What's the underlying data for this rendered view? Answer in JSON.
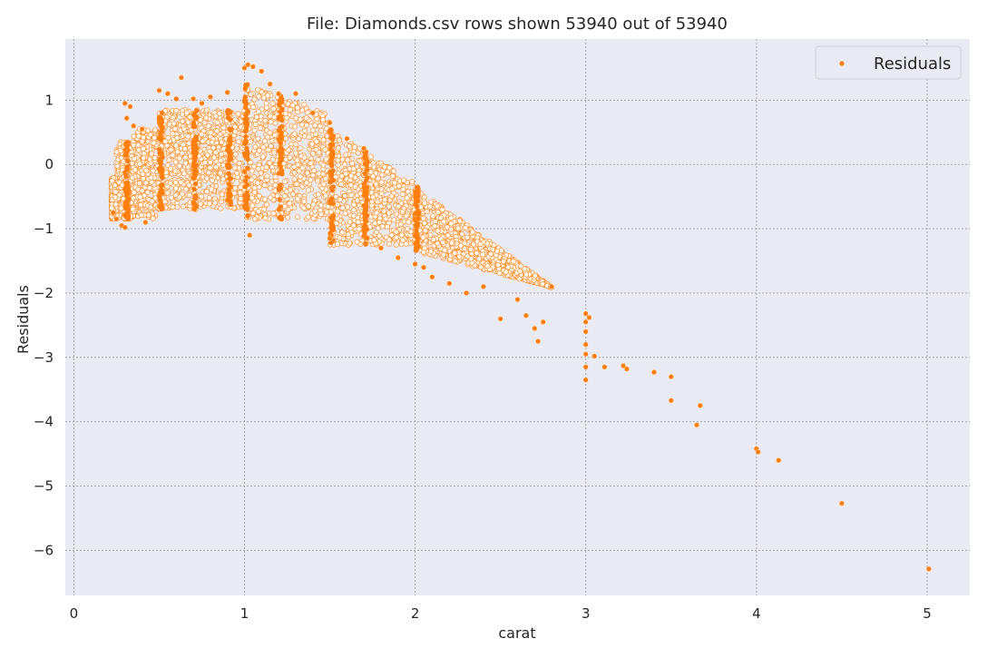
{
  "chart_data": {
    "type": "scatter",
    "title": "File: Diamonds.csv rows shown 53940 out of 53940",
    "xlabel": "carat",
    "ylabel": "Residuals",
    "xlim": [
      -0.05,
      5.25
    ],
    "ylim": [
      -6.7,
      1.95
    ],
    "xticks": [
      0,
      1,
      2,
      3,
      4,
      5
    ],
    "yticks": [
      1,
      0,
      -1,
      -2,
      -3,
      -4,
      -5,
      -6
    ],
    "grid": true,
    "legend": {
      "position": "top-right",
      "entries": [
        "Residuals"
      ]
    },
    "series": [
      {
        "name": "Residuals",
        "color": "#ff7f0e",
        "note": "53940 points; dense band from ~0.2 to ~2.8 carat (y approx -2.0 to 1.5), sparse outliers beyond 3 carat",
        "points": [
          [
            0.23,
            -0.75
          ],
          [
            0.25,
            -0.85
          ],
          [
            0.28,
            -0.95
          ],
          [
            0.3,
            -0.98
          ],
          [
            0.3,
            0.95
          ],
          [
            0.31,
            0.72
          ],
          [
            0.33,
            0.9
          ],
          [
            0.35,
            0.6
          ],
          [
            0.4,
            0.55
          ],
          [
            0.42,
            -0.9
          ],
          [
            0.5,
            1.15
          ],
          [
            0.55,
            1.1
          ],
          [
            0.6,
            1.02
          ],
          [
            0.63,
            1.35
          ],
          [
            0.7,
            1.02
          ],
          [
            0.75,
            0.95
          ],
          [
            0.8,
            1.05
          ],
          [
            0.9,
            1.12
          ],
          [
            1.0,
            1.5
          ],
          [
            1.02,
            1.55
          ],
          [
            1.05,
            1.52
          ],
          [
            1.1,
            1.45
          ],
          [
            1.03,
            -1.1
          ],
          [
            1.15,
            1.25
          ],
          [
            1.2,
            1.1
          ],
          [
            1.3,
            1.1
          ],
          [
            1.4,
            0.8
          ],
          [
            1.5,
            0.65
          ],
          [
            1.5,
            -1.15
          ],
          [
            1.6,
            0.4
          ],
          [
            1.7,
            0.25
          ],
          [
            1.8,
            -1.3
          ],
          [
            1.9,
            -1.45
          ],
          [
            2.0,
            -1.55
          ],
          [
            2.05,
            -1.6
          ],
          [
            2.1,
            -1.75
          ],
          [
            2.2,
            -1.85
          ],
          [
            2.3,
            -2.0
          ],
          [
            2.4,
            -1.9
          ],
          [
            2.5,
            -2.4
          ],
          [
            2.6,
            -2.1
          ],
          [
            2.65,
            -2.35
          ],
          [
            2.7,
            -2.55
          ],
          [
            2.72,
            -2.75
          ],
          [
            2.75,
            -2.45
          ],
          [
            2.8,
            -1.9
          ],
          [
            3.0,
            -2.32
          ],
          [
            3.0,
            -2.45
          ],
          [
            3.0,
            -2.6
          ],
          [
            3.0,
            -2.8
          ],
          [
            3.0,
            -2.95
          ],
          [
            3.0,
            -3.15
          ],
          [
            3.0,
            -3.35
          ],
          [
            3.02,
            -2.38
          ],
          [
            3.05,
            -2.98
          ],
          [
            3.11,
            -3.15
          ],
          [
            3.22,
            -3.13
          ],
          [
            3.24,
            -3.18
          ],
          [
            3.4,
            -3.23
          ],
          [
            3.5,
            -3.3
          ],
          [
            3.5,
            -3.67
          ],
          [
            3.65,
            -4.05
          ],
          [
            3.67,
            -3.75
          ],
          [
            4.0,
            -4.42
          ],
          [
            4.01,
            -4.47
          ],
          [
            4.13,
            -4.6
          ],
          [
            4.5,
            -5.27
          ],
          [
            5.01,
            -6.29
          ]
        ]
      }
    ]
  }
}
